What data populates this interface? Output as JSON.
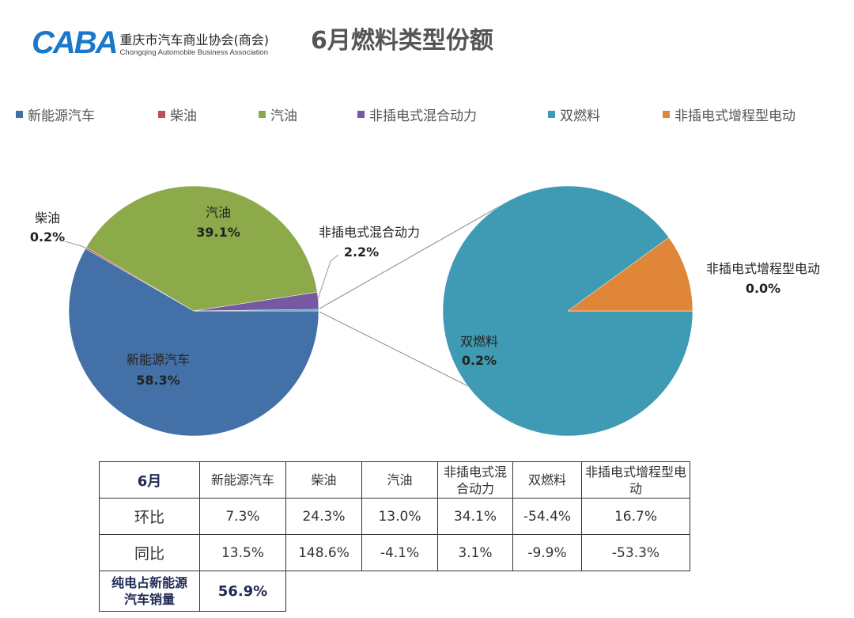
{
  "logo": {
    "mark": "CABA",
    "cn": "重庆市汽车商业协会(商会)",
    "en": "Chongqing Automobile Business Association"
  },
  "title": "6月燃料类型份额",
  "legend": [
    {
      "label": "新能源汽车",
      "color": "#4470a8"
    },
    {
      "label": "柴油",
      "color": "#c0504d"
    },
    {
      "label": "汽油",
      "color": "#8daa4b"
    },
    {
      "label": "非插电式混合动力",
      "color": "#7659a0"
    },
    {
      "label": "双燃料",
      "color": "#3f9ab3"
    },
    {
      "label": "非插电式增程型电动",
      "color": "#e08638"
    }
  ],
  "chart_data": [
    {
      "type": "pie",
      "slices": [
        {
          "label": "新能源汽车",
          "value": 58.3,
          "text": "58.3%",
          "color": "#4470a8"
        },
        {
          "label": "柴油",
          "value": 0.2,
          "text": "0.2%",
          "color": "#c0504d"
        },
        {
          "label": "汽油",
          "value": 39.1,
          "text": "39.1%",
          "color": "#8daa4b"
        },
        {
          "label": "非插电式混合动力",
          "value": 2.2,
          "text": "2.2%",
          "color": "#7659a0"
        },
        {
          "label": "",
          "value": 0.2,
          "text": "",
          "color": "#3f9ab3"
        }
      ]
    },
    {
      "type": "pie",
      "slices": [
        {
          "label": "双燃料",
          "value": 0.18,
          "text": "0.2%",
          "color": "#3f9ab3"
        },
        {
          "label": "非插电式增程型电动",
          "value": 0.02,
          "text": "0.0%",
          "color": "#e08638"
        }
      ]
    }
  ],
  "table": {
    "header": [
      "6月",
      "新能源汽车",
      "柴油",
      "汽油",
      "非插电式混合动力",
      "双燃料",
      "非插电式增程型电动"
    ],
    "rows": [
      [
        "环比",
        "7.3%",
        "24.3%",
        "13.0%",
        "34.1%",
        "-54.4%",
        "16.7%"
      ],
      [
        "同比",
        "13.5%",
        "148.6%",
        "-4.1%",
        "3.1%",
        "-9.9%",
        "-53.3%"
      ]
    ],
    "footer": {
      "label": "纯电占新能源汽车销量",
      "value": "56.9%"
    }
  }
}
